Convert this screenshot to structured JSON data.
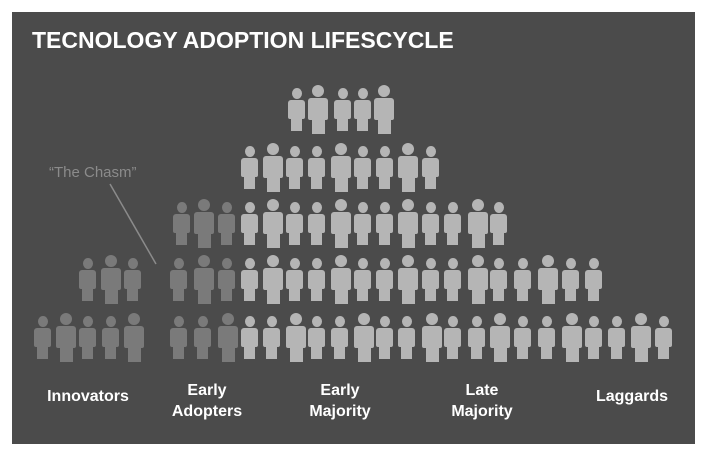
{
  "title": "TECNOLOGY ADOPTION LIFESCYCLE",
  "chasm_label": "“The Chasm”",
  "categories": [
    {
      "line1": "Innovators",
      "line2": ""
    },
    {
      "line1": "Early",
      "line2": "Adopters"
    },
    {
      "line1": "Early",
      "line2": "Majority"
    },
    {
      "line1": "Late",
      "line2": "Majority"
    },
    {
      "line1": "Laggards",
      "line2": ""
    }
  ],
  "colors": {
    "background": "#4b4b4b",
    "person_dark": "#7a7a7a",
    "person_light": "#b5b5b5",
    "chasm": "#8b8b8b",
    "text": "#ffffff"
  },
  "icons": [
    "person-icon"
  ]
}
